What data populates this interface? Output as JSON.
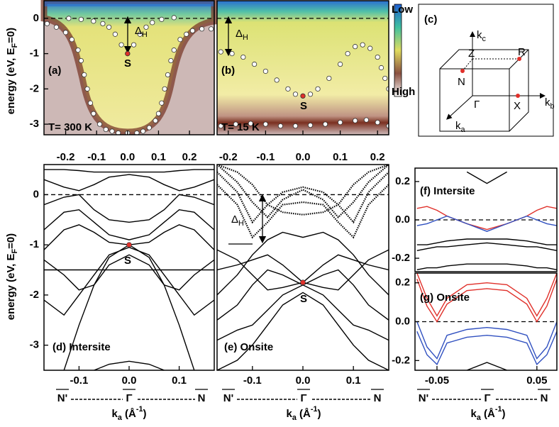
{
  "chart_data": [
    {
      "type": "scatter",
      "label": "(a)",
      "temperature": "T= 300 K",
      "point_label": "S",
      "gap_label": {
        "text": "Δ",
        "sub": "H"
      },
      "ylabel": {
        "text": "energy (eV, E",
        "sub": "F",
        "after": "=0)"
      },
      "xlim": [
        -0.27,
        0.28
      ],
      "ylim": [
        -3.3,
        0.5
      ],
      "xticks": [
        -0.2,
        -0.1,
        {
          "value": 0,
          "label": "0.0"
        },
        0.1,
        0.2
      ],
      "yticks": [
        -3,
        -2,
        -1,
        0
      ],
      "hline": 0,
      "series": [
        {
          "color": "#ffffff",
          "x": [
            -0.26,
            -0.23,
            -0.2,
            -0.18,
            -0.16,
            -0.15,
            -0.14,
            -0.13,
            -0.12,
            -0.11,
            -0.09,
            -0.07,
            -0.05,
            -0.03,
            0,
            0.03,
            0.05,
            0.07,
            0.09,
            0.1,
            0.11,
            0.12,
            0.13,
            0.14,
            0.15,
            0.17,
            0.19,
            0.21,
            0.24,
            0.27
          ],
          "values": [
            -0.15,
            -0.25,
            -0.4,
            -0.6,
            -0.9,
            -1.2,
            -1.6,
            -2.0,
            -2.4,
            -2.7,
            -3.0,
            -3.15,
            -3.2,
            -3.25,
            -3.25,
            -3.25,
            -3.2,
            -3.1,
            -2.9,
            -2.7,
            -2.4,
            -2.0,
            -1.6,
            -1.2,
            -0.9,
            -0.6,
            -0.45,
            -0.35,
            -0.3,
            -0.3
          ]
        },
        {
          "color": "#ffffff",
          "x": [
            -0.19,
            -0.15,
            -0.11,
            -0.08,
            -0.06,
            -0.04,
            -0.02,
            0,
            0.02,
            0.04,
            0.06,
            0.08,
            0.11,
            0.15
          ],
          "values": [
            0,
            -0.03,
            -0.08,
            -0.15,
            -0.25,
            -0.45,
            -0.75,
            -1.0,
            -0.75,
            -0.45,
            -0.25,
            -0.12,
            -0.03,
            0.02
          ]
        },
        {
          "color": "#e0302a",
          "x": [
            0
          ],
          "values": [
            -1.0
          ]
        }
      ]
    },
    {
      "type": "scatter",
      "label": "(b)",
      "temperature": "T= 15 K",
      "point_label": "S",
      "gap_label": {
        "text": "Δ",
        "sub": "H"
      },
      "colorbar": {
        "low": "Low",
        "high": "High"
      },
      "xlim": [
        -0.23,
        0.23
      ],
      "ylim": [
        -3.3,
        0.5
      ],
      "xticks": [
        -0.2,
        -0.1,
        {
          "value": 0,
          "label": "0.0"
        },
        0.1,
        0.2
      ],
      "hline": 0,
      "series": [
        {
          "color": "#ffffff",
          "x": [
            -0.22,
            -0.19,
            -0.16,
            -0.13,
            -0.1,
            -0.07,
            -0.04,
            -0.02,
            0,
            0.02,
            0.04,
            0.07,
            0.1,
            0.12,
            0.14,
            0.16,
            0.18,
            0.2,
            0.21,
            0.22,
            0.23
          ],
          "values": [
            -0.95,
            -1.0,
            -1.1,
            -1.3,
            -1.5,
            -1.75,
            -2.0,
            -2.15,
            -2.2,
            -2.15,
            -2.0,
            -1.7,
            -1.3,
            -1.0,
            -0.8,
            -0.75,
            -0.85,
            -1.1,
            -1.4,
            -1.7,
            -2.0
          ]
        },
        {
          "color": "#ffffff",
          "x": [
            -0.22,
            -0.18,
            -0.14,
            -0.1,
            -0.06,
            -0.02,
            0.02,
            0.06,
            0.1,
            0.14,
            0.17,
            0.2,
            0.23
          ],
          "values": [
            -3.05,
            -3.0,
            -2.98,
            -3.0,
            -3.05,
            -3.05,
            -3.03,
            -3.0,
            -2.95,
            -2.9,
            -2.88,
            -2.95,
            -3.05
          ]
        },
        {
          "color": "#e0302a",
          "x": [
            0
          ],
          "values": [
            -2.2
          ]
        }
      ]
    },
    {
      "type": "line",
      "label": "(d) Intersite",
      "point_label": "S",
      "ylabel": {
        "text": "energy (eV, E",
        "sub": "F",
        "after": "=0)"
      },
      "xlabel": {
        "text": "k",
        "sub": "a",
        "after": " (Å",
        "sup": "-1",
        "end": ")"
      },
      "symmetry": [
        "N'",
        "Γ",
        "N"
      ],
      "xlim": [
        -0.17,
        0.17
      ],
      "ylim": [
        -3.5,
        0.6
      ],
      "xticks": [
        -0.1,
        {
          "value": 0,
          "label": "0.0"
        },
        0.1
      ],
      "yticks": [
        -3,
        -2,
        -1,
        0
      ],
      "hline": 0,
      "x": [
        -0.17,
        -0.13,
        -0.1,
        -0.07,
        -0.04,
        0,
        0.04,
        0.07,
        0.1,
        0.13,
        0.17
      ],
      "series": [
        {
          "color": "#000000",
          "values": [
            null,
            -3.5,
            -2.6,
            -1.8,
            -1.25,
            -1.0,
            -1.25,
            -1.8,
            -2.6,
            -3.5,
            null
          ]
        },
        {
          "color": "#000000",
          "values": [
            0.5,
            0.5,
            0.48,
            0.45,
            0.45,
            0.45,
            0.45,
            0.45,
            0.48,
            0.5,
            0.5
          ]
        },
        {
          "color": "#000000",
          "values": [
            0.3,
            0.15,
            0.08,
            0.2,
            0.35,
            0.4,
            0.35,
            0.2,
            0.08,
            0.15,
            0.3
          ]
        },
        {
          "color": "#000000",
          "values": [
            -0.2,
            -0.05,
            0.0,
            -0.3,
            -0.5,
            -0.55,
            -0.5,
            -0.3,
            0.0,
            -0.05,
            -0.2
          ]
        },
        {
          "color": "#000000",
          "values": [
            -0.7,
            -0.35,
            -0.3,
            -0.55,
            -0.8,
            -0.9,
            -0.8,
            -0.55,
            -0.3,
            -0.35,
            -0.7
          ]
        },
        {
          "color": "#000000",
          "values": [
            -1.1,
            -0.7,
            -0.6,
            -0.75,
            -0.95,
            -1.0,
            -0.95,
            -0.75,
            -0.6,
            -0.7,
            -1.1
          ]
        },
        {
          "color": "#000000",
          "values": [
            -1.5,
            -1.5,
            -1.5,
            -1.5,
            -1.5,
            -1.5,
            -1.5,
            -1.5,
            -1.5,
            -1.5,
            -1.5
          ]
        },
        {
          "color": "#000000",
          "values": [
            -1.3,
            -1.6,
            -1.9,
            -1.8,
            -1.4,
            -1.2,
            -1.4,
            -1.8,
            -1.9,
            -1.6,
            -1.3
          ]
        },
        {
          "color": "#000000",
          "values": [
            -2.1,
            -2.4,
            -2.0,
            -1.6,
            -1.2,
            -1.05,
            -1.2,
            -1.6,
            -2.0,
            -2.4,
            -2.1
          ]
        },
        {
          "color": "#000000",
          "values": [
            null,
            null,
            null,
            -3.5,
            -3.38,
            -3.32,
            -3.38,
            -3.5,
            null,
            null,
            null
          ]
        }
      ],
      "markers": {
        "color": "#e0302a",
        "x": [
          0
        ],
        "values": [
          -1.0
        ]
      }
    },
    {
      "type": "line",
      "label": "(e) Onsite",
      "point_label": "S",
      "gap_label": {
        "text": "Δ",
        "sub": "H"
      },
      "xlabel": {
        "text": "k",
        "sub": "a",
        "after": " (Å",
        "sup": "-1",
        "end": ")"
      },
      "symmetry": [
        "N'",
        "Γ",
        "N"
      ],
      "xlim": [
        -0.17,
        0.17
      ],
      "ylim": [
        -3.5,
        0.6
      ],
      "xticks": [
        -0.1,
        {
          "value": 0,
          "label": "0.0"
        },
        0.1
      ],
      "hline": 0,
      "x": [
        -0.17,
        -0.13,
        -0.1,
        -0.07,
        -0.04,
        0,
        0.04,
        0.07,
        0.1,
        0.13,
        0.17
      ],
      "series": [
        {
          "color": "#000000",
          "style": "dotted",
          "values": [
            0.6,
            0.25,
            -0.15,
            -0.45,
            -0.1,
            0.1,
            -0.1,
            -0.45,
            -0.15,
            0.25,
            0.6
          ]
        },
        {
          "color": "#000000",
          "style": "dotted",
          "values": [
            0.45,
            0.05,
            -0.55,
            -0.2,
            0.05,
            0.15,
            0.05,
            -0.2,
            -0.55,
            0.05,
            0.45
          ]
        },
        {
          "color": "#000000",
          "style": "dotted",
          "values": [
            0.2,
            -0.2,
            -0.85,
            -0.55,
            -0.2,
            -0.15,
            -0.2,
            -0.55,
            -0.85,
            -0.2,
            0.2
          ]
        },
        {
          "color": "#000000",
          "style": "dotted",
          "values": [
            0.6,
            0.45,
            0.2,
            -0.2,
            -0.35,
            -0.4,
            -0.35,
            -0.2,
            0.2,
            0.45,
            0.6
          ]
        },
        {
          "color": "#000000",
          "values": [
            -2.0,
            -1.6,
            -1.2,
            -0.9,
            -0.75,
            -0.85,
            -0.75,
            -0.9,
            -1.2,
            -1.6,
            -2.0
          ]
        },
        {
          "color": "#000000",
          "values": [
            -1.5,
            -1.4,
            -1.3,
            -1.2,
            -1.4,
            -1.75,
            -1.4,
            -1.2,
            -1.3,
            -1.4,
            -1.5
          ]
        },
        {
          "color": "#000000",
          "values": [
            -1.1,
            -1.3,
            -1.6,
            -1.9,
            -1.85,
            -1.75,
            -1.85,
            -1.9,
            -1.6,
            -1.3,
            -1.1
          ]
        },
        {
          "color": "#000000",
          "values": [
            -2.5,
            -2.2,
            -1.8,
            -1.5,
            -1.6,
            -1.8,
            -1.6,
            -1.5,
            -1.8,
            -2.2,
            -2.5
          ]
        },
        {
          "color": "#000000",
          "values": [
            -2.9,
            -2.7,
            -2.6,
            -2.3,
            -2.0,
            -1.8,
            -2.0,
            -2.3,
            -2.6,
            -2.7,
            -2.9
          ]
        },
        {
          "color": "#000000",
          "values": [
            -3.5,
            -3.3,
            -3.0,
            -2.6,
            -2.2,
            -1.95,
            -2.2,
            -2.6,
            -3.0,
            -3.3,
            -3.5
          ]
        }
      ],
      "markers": {
        "color": "#e0302a",
        "x": [
          0
        ],
        "values": [
          -1.75
        ]
      }
    },
    {
      "type": "line",
      "label": "(f) Intersite",
      "xlim": [
        -0.072,
        0.07
      ],
      "ylim": [
        -0.27,
        0.27
      ],
      "yticks": [
        -0.2,
        {
          "value": 0,
          "label": "0.0"
        },
        0.2
      ],
      "hline": 0,
      "x": [
        -0.07,
        -0.06,
        -0.05,
        -0.04,
        -0.02,
        0,
        0.02,
        0.04,
        0.05,
        0.06,
        0.07
      ],
      "series": [
        {
          "color": "#000000",
          "values": [
            null,
            null,
            null,
            null,
            0.25,
            0.19,
            0.25,
            null,
            null,
            null,
            null
          ]
        },
        {
          "color": "#e0302a",
          "values": [
            0.06,
            0.07,
            0.05,
            0.02,
            -0.02,
            -0.05,
            -0.02,
            0.02,
            0.05,
            0.07,
            0.06
          ]
        },
        {
          "color": "#3050c0",
          "values": [
            -0.03,
            -0.02,
            0.0,
            0.02,
            -0.02,
            -0.06,
            -0.02,
            0.02,
            0.0,
            -0.02,
            -0.03
          ]
        },
        {
          "color": "#000000",
          "values": [
            -0.13,
            -0.13,
            -0.12,
            -0.11,
            -0.1,
            -0.1,
            -0.1,
            -0.11,
            -0.12,
            -0.13,
            -0.13
          ]
        },
        {
          "color": "#000000",
          "values": [
            -0.16,
            -0.15,
            -0.14,
            -0.14,
            -0.13,
            -0.12,
            -0.13,
            -0.14,
            -0.14,
            -0.15,
            -0.16
          ]
        },
        {
          "color": "#000000",
          "values": [
            -0.26,
            -0.25,
            -0.25,
            -0.24,
            -0.23,
            -0.23,
            -0.23,
            -0.24,
            -0.25,
            -0.25,
            -0.26
          ]
        }
      ]
    },
    {
      "type": "line",
      "label": "(g) Onsite",
      "xlabel": {
        "text": "k",
        "sub": "a",
        "after": " (Å",
        "sup": "-1",
        "end": ")"
      },
      "symmetry": [
        "N'",
        "Γ",
        "N"
      ],
      "xlim": [
        -0.072,
        0.07
      ],
      "ylim": [
        -0.25,
        0.25
      ],
      "xticks": [
        -0.05,
        0.05
      ],
      "yticks": [
        -0.2,
        {
          "value": 0,
          "label": "0.0"
        },
        0.2
      ],
      "hline": 0,
      "x": [
        -0.07,
        -0.06,
        -0.05,
        -0.04,
        -0.02,
        0,
        0.02,
        0.04,
        0.05,
        0.06,
        0.07
      ],
      "series": [
        {
          "color": "#e0302a",
          "values": [
            0.25,
            0.12,
            0.03,
            0.12,
            0.19,
            0.2,
            0.19,
            0.12,
            0.03,
            0.12,
            0.25
          ]
        },
        {
          "color": "#e0302a",
          "values": [
            0.22,
            0.08,
            0.0,
            0.09,
            0.16,
            0.17,
            0.16,
            0.09,
            0.0,
            0.08,
            0.22
          ]
        },
        {
          "color": "#3050c0",
          "values": [
            0.0,
            -0.13,
            -0.19,
            -0.07,
            -0.04,
            -0.03,
            -0.04,
            -0.07,
            -0.19,
            -0.13,
            0.0
          ]
        },
        {
          "color": "#3050c0",
          "values": [
            -0.05,
            -0.17,
            -0.22,
            -0.11,
            -0.08,
            -0.07,
            -0.08,
            -0.11,
            -0.22,
            -0.17,
            -0.05
          ]
        },
        {
          "color": "#000000",
          "values": [
            null,
            null,
            null,
            null,
            -0.25,
            -0.21,
            -0.25,
            null,
            null,
            null,
            null
          ]
        }
      ]
    }
  ],
  "diagram": {
    "label": "(c)",
    "kc": {
      "text": "k",
      "sub": "c"
    },
    "kb": {
      "text": "k",
      "sub": "b"
    },
    "ka": {
      "text": "k",
      "sub": "a"
    },
    "points": {
      "Z": "Z",
      "R": "R",
      "N": "N",
      "X": "X",
      "G": "Γ"
    }
  }
}
